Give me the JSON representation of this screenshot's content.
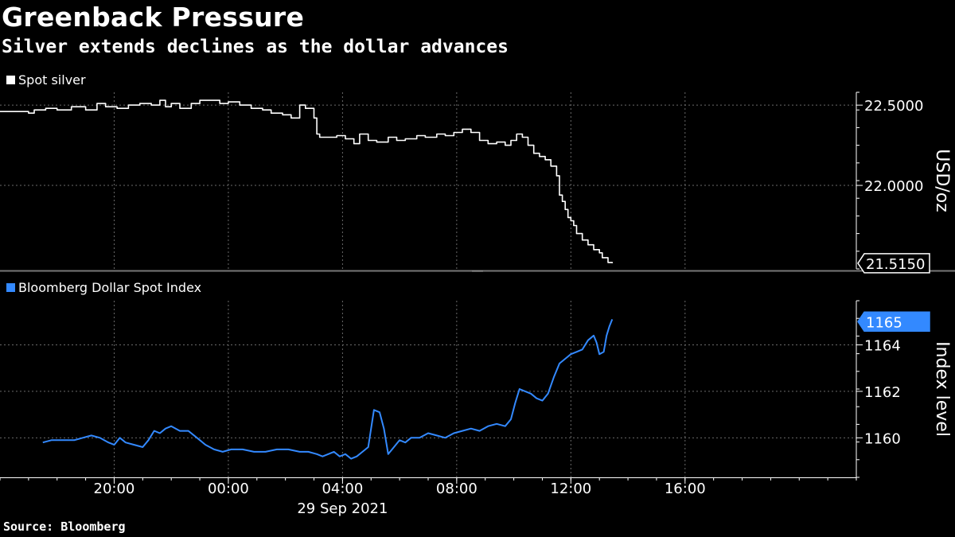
{
  "header": {
    "title": "Greenback Pressure",
    "subtitle": "Silver extends declines as the dollar advances"
  },
  "footer": {
    "source": "Source: Bloomberg"
  },
  "colors": {
    "silver": "#ffffff",
    "dxy": "#3389ff",
    "grid": "#6a6a6a",
    "background": "#000000"
  },
  "chart_data": [
    {
      "type": "line",
      "legend": "Spot silver",
      "ylabel": "USD/oz",
      "ylim": [
        21.48,
        22.58
      ],
      "yticks": [
        "22.5000",
        "22.0000"
      ],
      "ytick_values": [
        22.5,
        22.0
      ],
      "last_label": "21.5150",
      "last_value": 21.515,
      "series": [
        {
          "name": "Spot silver",
          "points": [
            [
              16.0,
              22.46
            ],
            [
              17.0,
              22.45
            ],
            [
              17.2,
              22.47
            ],
            [
              17.6,
              22.48
            ],
            [
              18.0,
              22.47
            ],
            [
              18.5,
              22.49
            ],
            [
              19.0,
              22.47
            ],
            [
              19.4,
              22.51
            ],
            [
              19.7,
              22.49
            ],
            [
              20.1,
              22.48
            ],
            [
              20.5,
              22.5
            ],
            [
              20.9,
              22.51
            ],
            [
              21.3,
              22.5
            ],
            [
              21.6,
              22.53
            ],
            [
              21.8,
              22.49
            ],
            [
              22.0,
              22.51
            ],
            [
              22.3,
              22.48
            ],
            [
              22.7,
              22.51
            ],
            [
              23.0,
              22.53
            ],
            [
              23.4,
              22.53
            ],
            [
              23.7,
              22.51
            ],
            [
              24.0,
              22.52
            ],
            [
              24.4,
              22.5
            ],
            [
              24.8,
              22.48
            ],
            [
              25.2,
              22.47
            ],
            [
              25.5,
              22.45
            ],
            [
              25.9,
              22.44
            ],
            [
              26.2,
              22.42
            ],
            [
              26.5,
              22.5
            ],
            [
              26.7,
              22.48
            ],
            [
              27.0,
              22.42
            ],
            [
              27.1,
              22.32
            ],
            [
              27.2,
              22.3
            ],
            [
              27.5,
              22.3
            ],
            [
              27.8,
              22.31
            ],
            [
              28.1,
              22.29
            ],
            [
              28.4,
              22.26
            ],
            [
              28.6,
              22.32
            ],
            [
              28.9,
              22.28
            ],
            [
              29.2,
              22.27
            ],
            [
              29.6,
              22.3
            ],
            [
              29.9,
              22.28
            ],
            [
              30.2,
              22.29
            ],
            [
              30.6,
              22.31
            ],
            [
              30.9,
              22.3
            ],
            [
              31.3,
              22.32
            ],
            [
              31.6,
              22.31
            ],
            [
              31.9,
              22.33
            ],
            [
              32.2,
              22.35
            ],
            [
              32.5,
              22.33
            ],
            [
              32.8,
              22.28
            ],
            [
              33.1,
              22.26
            ],
            [
              33.4,
              22.27
            ],
            [
              33.7,
              22.25
            ],
            [
              33.9,
              22.28
            ],
            [
              34.1,
              22.32
            ],
            [
              34.3,
              22.3
            ],
            [
              34.5,
              22.25
            ],
            [
              34.7,
              22.2
            ],
            [
              34.9,
              22.18
            ],
            [
              35.1,
              22.16
            ],
            [
              35.3,
              22.12
            ],
            [
              35.5,
              22.06
            ],
            [
              35.6,
              21.94
            ],
            [
              35.7,
              21.9
            ],
            [
              35.8,
              21.85
            ],
            [
              35.9,
              21.8
            ],
            [
              36.0,
              21.78
            ],
            [
              36.1,
              21.75
            ],
            [
              36.2,
              21.7
            ],
            [
              36.4,
              21.66
            ],
            [
              36.6,
              21.63
            ],
            [
              36.8,
              21.6
            ],
            [
              37.0,
              21.58
            ],
            [
              37.1,
              21.55
            ],
            [
              37.3,
              21.52
            ],
            [
              37.45,
              21.515
            ]
          ]
        }
      ]
    },
    {
      "type": "line",
      "legend": "Bloomberg Dollar Spot Index",
      "ylabel": "Index level",
      "ylim": [
        1158.3,
        1165.9
      ],
      "yticks": [
        "1164",
        "1162",
        "1160"
      ],
      "ytick_values": [
        1164,
        1162,
        1160
      ],
      "last_label": "1165",
      "last_value": 1165,
      "series": [
        {
          "name": "Bloomberg Dollar Spot Index",
          "points": [
            [
              17.5,
              1159.8
            ],
            [
              17.8,
              1159.9
            ],
            [
              18.2,
              1159.9
            ],
            [
              18.6,
              1159.9
            ],
            [
              18.9,
              1160.0
            ],
            [
              19.2,
              1160.1
            ],
            [
              19.5,
              1160.0
            ],
            [
              19.8,
              1159.8
            ],
            [
              20.0,
              1159.7
            ],
            [
              20.2,
              1160.0
            ],
            [
              20.4,
              1159.8
            ],
            [
              20.7,
              1159.7
            ],
            [
              21.0,
              1159.6
            ],
            [
              21.2,
              1159.9
            ],
            [
              21.4,
              1160.3
            ],
            [
              21.6,
              1160.2
            ],
            [
              21.8,
              1160.4
            ],
            [
              22.0,
              1160.5
            ],
            [
              22.3,
              1160.3
            ],
            [
              22.6,
              1160.3
            ],
            [
              22.9,
              1160.0
            ],
            [
              23.2,
              1159.7
            ],
            [
              23.5,
              1159.5
            ],
            [
              23.8,
              1159.4
            ],
            [
              24.1,
              1159.5
            ],
            [
              24.5,
              1159.5
            ],
            [
              24.9,
              1159.4
            ],
            [
              25.3,
              1159.4
            ],
            [
              25.7,
              1159.5
            ],
            [
              26.1,
              1159.5
            ],
            [
              26.5,
              1159.4
            ],
            [
              26.8,
              1159.4
            ],
            [
              27.1,
              1159.3
            ],
            [
              27.3,
              1159.2
            ],
            [
              27.5,
              1159.3
            ],
            [
              27.7,
              1159.4
            ],
            [
              27.9,
              1159.2
            ],
            [
              28.1,
              1159.3
            ],
            [
              28.3,
              1159.1
            ],
            [
              28.5,
              1159.2
            ],
            [
              28.7,
              1159.4
            ],
            [
              28.9,
              1159.6
            ],
            [
              29.1,
              1161.2
            ],
            [
              29.3,
              1161.1
            ],
            [
              29.45,
              1160.4
            ],
            [
              29.6,
              1159.3
            ],
            [
              29.8,
              1159.6
            ],
            [
              30.0,
              1159.9
            ],
            [
              30.2,
              1159.8
            ],
            [
              30.4,
              1160.0
            ],
            [
              30.7,
              1160.0
            ],
            [
              31.0,
              1160.2
            ],
            [
              31.3,
              1160.1
            ],
            [
              31.6,
              1160.0
            ],
            [
              31.9,
              1160.2
            ],
            [
              32.2,
              1160.3
            ],
            [
              32.5,
              1160.4
            ],
            [
              32.8,
              1160.3
            ],
            [
              33.1,
              1160.5
            ],
            [
              33.4,
              1160.6
            ],
            [
              33.7,
              1160.5
            ],
            [
              33.9,
              1160.8
            ],
            [
              34.05,
              1161.5
            ],
            [
              34.2,
              1162.1
            ],
            [
              34.4,
              1162.0
            ],
            [
              34.6,
              1161.9
            ],
            [
              34.8,
              1161.7
            ],
            [
              35.0,
              1161.6
            ],
            [
              35.2,
              1161.9
            ],
            [
              35.4,
              1162.6
            ],
            [
              35.6,
              1163.2
            ],
            [
              35.8,
              1163.4
            ],
            [
              36.0,
              1163.6
            ],
            [
              36.2,
              1163.7
            ],
            [
              36.4,
              1163.8
            ],
            [
              36.6,
              1164.2
            ],
            [
              36.8,
              1164.4
            ],
            [
              36.9,
              1164.1
            ],
            [
              37.0,
              1163.6
            ],
            [
              37.15,
              1163.7
            ],
            [
              37.25,
              1164.4
            ],
            [
              37.35,
              1164.8
            ],
            [
              37.45,
              1165.1
            ]
          ]
        }
      ]
    }
  ],
  "x_axis": {
    "date_label": "29 Sep 2021",
    "ticks": [
      {
        "label": "20:00",
        "hour": 20
      },
      {
        "label": "00:00",
        "hour": 24
      },
      {
        "label": "04:00",
        "hour": 28
      },
      {
        "label": "08:00",
        "hour": 32
      },
      {
        "label": "12:00",
        "hour": 36
      },
      {
        "label": "16:00",
        "hour": 40
      }
    ]
  }
}
